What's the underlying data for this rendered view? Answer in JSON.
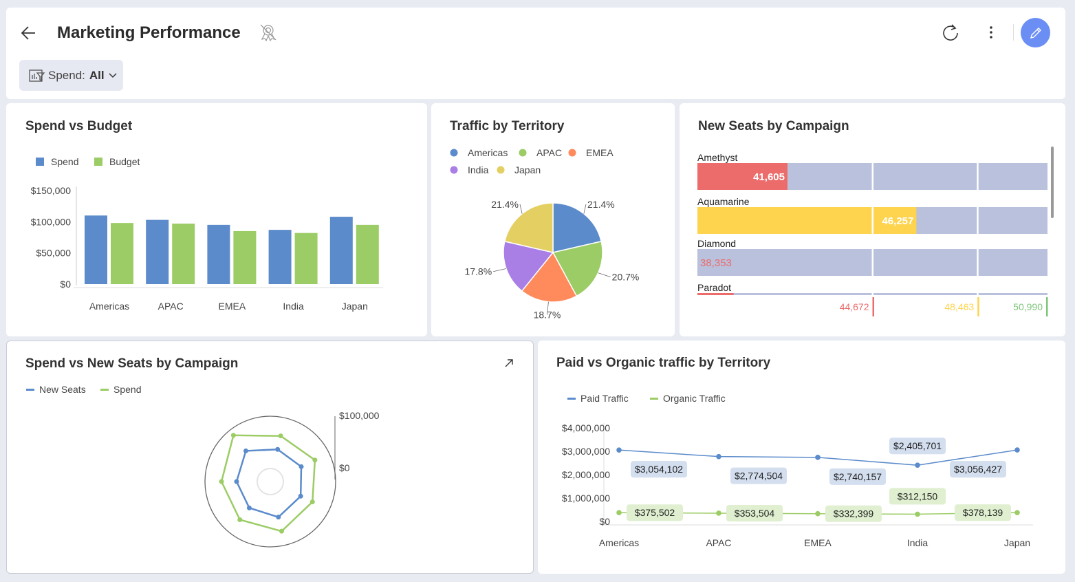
{
  "header": {
    "title": "Marketing Performance",
    "filter_label": "Spend:",
    "filter_value": "All",
    "icons": [
      "back-arrow-icon",
      "certified-off-icon",
      "refresh-icon",
      "more-vert-icon",
      "edit-pencil-icon"
    ],
    "edit_color": "#6b8ef5"
  },
  "spend_vs_budget": {
    "title": "Spend vs Budget",
    "chart_data": {
      "type": "bar",
      "categories": [
        "Americas",
        "APAC",
        "EMEA",
        "India",
        "Japan"
      ],
      "series": [
        {
          "name": "Spend",
          "color": "#5b8bcb",
          "values": [
            110000,
            103000,
            95000,
            87000,
            108000
          ]
        },
        {
          "name": "Budget",
          "color": "#9ccc65",
          "values": [
            98000,
            97000,
            85000,
            82000,
            95000
          ]
        }
      ],
      "yticks": [
        "$0",
        "$50,000",
        "$100,000",
        "$150,000"
      ],
      "ylim": [
        0,
        150000
      ],
      "legend": "top-left"
    }
  },
  "traffic": {
    "title": "Traffic by Territory",
    "chart_data": {
      "type": "pie",
      "categories": [
        "Americas",
        "APAC",
        "EMEA",
        "India",
        "Japan"
      ],
      "values": [
        21.4,
        20.7,
        18.7,
        17.8,
        21.4
      ],
      "labels": [
        "21.4%",
        "20.7%",
        "18.7%",
        "17.8%",
        "21.4%"
      ],
      "colors": [
        "#5b8bcb",
        "#9ccc65",
        "#ff8a5c",
        "#a97fe6",
        "#e4cf62"
      ],
      "legend": "top"
    }
  },
  "new_seats": {
    "title": "New Seats by Campaign",
    "chart_data": {
      "type": "bar",
      "orientation": "horizontal-bullet",
      "range": [
        38353,
        50990
      ],
      "rows": [
        {
          "name": "Amethyst",
          "value": 41605,
          "label": "41,605",
          "color": "#ec6b6b"
        },
        {
          "name": "Aquamarine",
          "value": 46257,
          "label": "46,257",
          "color": "#fed44e"
        },
        {
          "name": "Diamond",
          "value": 38353,
          "label": "38,353",
          "color": "#ec6b6b"
        },
        {
          "name": "Paradot",
          "value": 39660,
          "color": "#ec6b6b"
        }
      ],
      "thresholds": [
        {
          "value": 44672,
          "label": "44,672",
          "color": "#ec6b6b"
        },
        {
          "value": 48463,
          "label": "48,463",
          "color": "#fed44e"
        },
        {
          "value": 50990,
          "label": "50,990",
          "color": "#7dc67a"
        }
      ],
      "track_color": "#b9c1dd"
    }
  },
  "radar": {
    "title": "Spend vs New Seats by Campaign",
    "chart_data": {
      "type": "radar",
      "axis_ticks": [
        "$100,000",
        "$0"
      ],
      "max": 100000,
      "series": [
        {
          "name": "New Seats",
          "color": "#5b8bcb",
          "values": [
            51600,
            60000,
            50500,
            52600,
            51600,
            55800,
            51600
          ]
        },
        {
          "name": "Spend",
          "color": "#9ccc65",
          "values": [
            74700,
            90500,
            71600,
            75800,
            71600,
            77900,
            74700
          ]
        }
      ],
      "legend": "top-left"
    }
  },
  "paid_organic": {
    "title": "Paid vs Organic traffic by Territory",
    "chart_data": {
      "type": "line",
      "categories": [
        "Americas",
        "APAC",
        "EMEA",
        "India",
        "Japan"
      ],
      "series": [
        {
          "name": "Paid Traffic",
          "color": "#5b8bcb",
          "label_bg": "#d3deef",
          "values": [
            3054102,
            2774504,
            2740157,
            2405701,
            3056427
          ],
          "labels": [
            "$3,054,102",
            "$2,774,504",
            "$2,740,157",
            "$2,405,701",
            "$3,056,427"
          ]
        },
        {
          "name": "Organic Traffic",
          "color": "#9ccc65",
          "label_bg": "#dfefcf",
          "values": [
            375502,
            353504,
            332399,
            312150,
            378139
          ],
          "labels": [
            "$375,502",
            "$353,504",
            "$332,399",
            "$312,150",
            "$378,139"
          ]
        }
      ],
      "yticks": [
        "$0",
        "$1,000,000",
        "$2,000,000",
        "$3,000,000",
        "$4,000,000"
      ],
      "ylim": [
        0,
        4000000
      ],
      "legend": "top-left"
    }
  }
}
